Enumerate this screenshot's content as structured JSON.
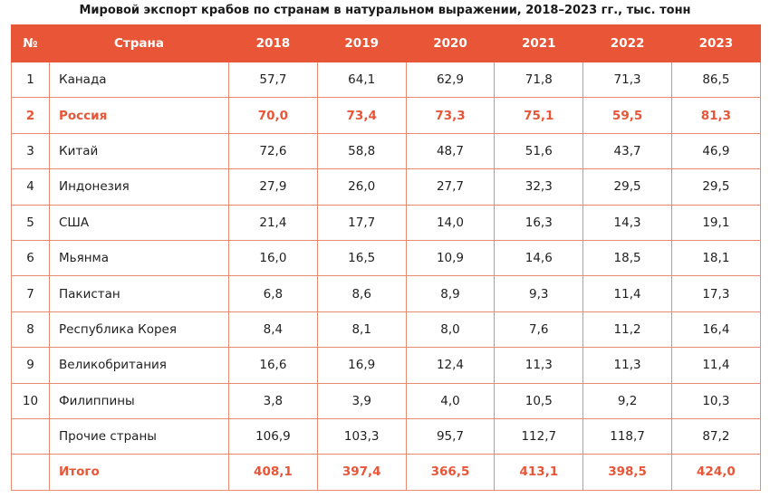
{
  "title": "Мировой экспорт крабов по странам в натуральном выражении, 2018–2023 гг., тыс. тонн",
  "accent_color": "#e85537",
  "header": [
    "№",
    "Страна",
    "2018",
    "2019",
    "2020",
    "2021",
    "2022",
    "2023"
  ],
  "rows": [
    {
      "num": "1",
      "country": "Канада",
      "values": [
        "57,7",
        "64,1",
        "62,9",
        "71,8",
        "71,3",
        "86,5"
      ],
      "highlight": false
    },
    {
      "num": "2",
      "country": "Россия",
      "values": [
        "70,0",
        "73,4",
        "73,3",
        "75,1",
        "59,5",
        "81,3"
      ],
      "highlight": true
    },
    {
      "num": "3",
      "country": "Китай",
      "values": [
        "72,6",
        "58,8",
        "48,7",
        "51,6",
        "43,7",
        "46,9"
      ],
      "highlight": false
    },
    {
      "num": "4",
      "country": "Индонезия",
      "values": [
        "27,9",
        "26,0",
        "27,7",
        "32,3",
        "29,5",
        "29,5"
      ],
      "highlight": false
    },
    {
      "num": "5",
      "country": "США",
      "values": [
        "21,4",
        "17,7",
        "14,0",
        "16,3",
        "14,3",
        "19,1"
      ],
      "highlight": false
    },
    {
      "num": "6",
      "country": "Мьянма",
      "values": [
        "16,0",
        "16,5",
        "10,9",
        "14,6",
        "18,5",
        "18,1"
      ],
      "highlight": false
    },
    {
      "num": "7",
      "country": "Пакистан",
      "values": [
        "6,8",
        "8,6",
        "8,9",
        "9,3",
        "11,4",
        "17,3"
      ],
      "highlight": false
    },
    {
      "num": "8",
      "country": "Республика Корея",
      "values": [
        "8,4",
        "8,1",
        "8,0",
        "7,6",
        "11,2",
        "16,4"
      ],
      "highlight": false
    },
    {
      "num": "9",
      "country": "Великобритания",
      "values": [
        "16,6",
        "16,9",
        "12,4",
        "11,3",
        "11,3",
        "11,4"
      ],
      "highlight": false
    },
    {
      "num": "10",
      "country": "Филиппины",
      "values": [
        "3,8",
        "3,9",
        "4,0",
        "10,5",
        "9,2",
        "10,3"
      ],
      "highlight": false
    },
    {
      "num": "",
      "country": "Прочие страны",
      "values": [
        "106,9",
        "103,3",
        "95,7",
        "112,7",
        "118,7",
        "87,2"
      ],
      "highlight": false
    },
    {
      "num": "",
      "country": "Итого",
      "values": [
        "408,1",
        "397,4",
        "366,5",
        "413,1",
        "398,5",
        "424,0"
      ],
      "highlight": true
    }
  ]
}
